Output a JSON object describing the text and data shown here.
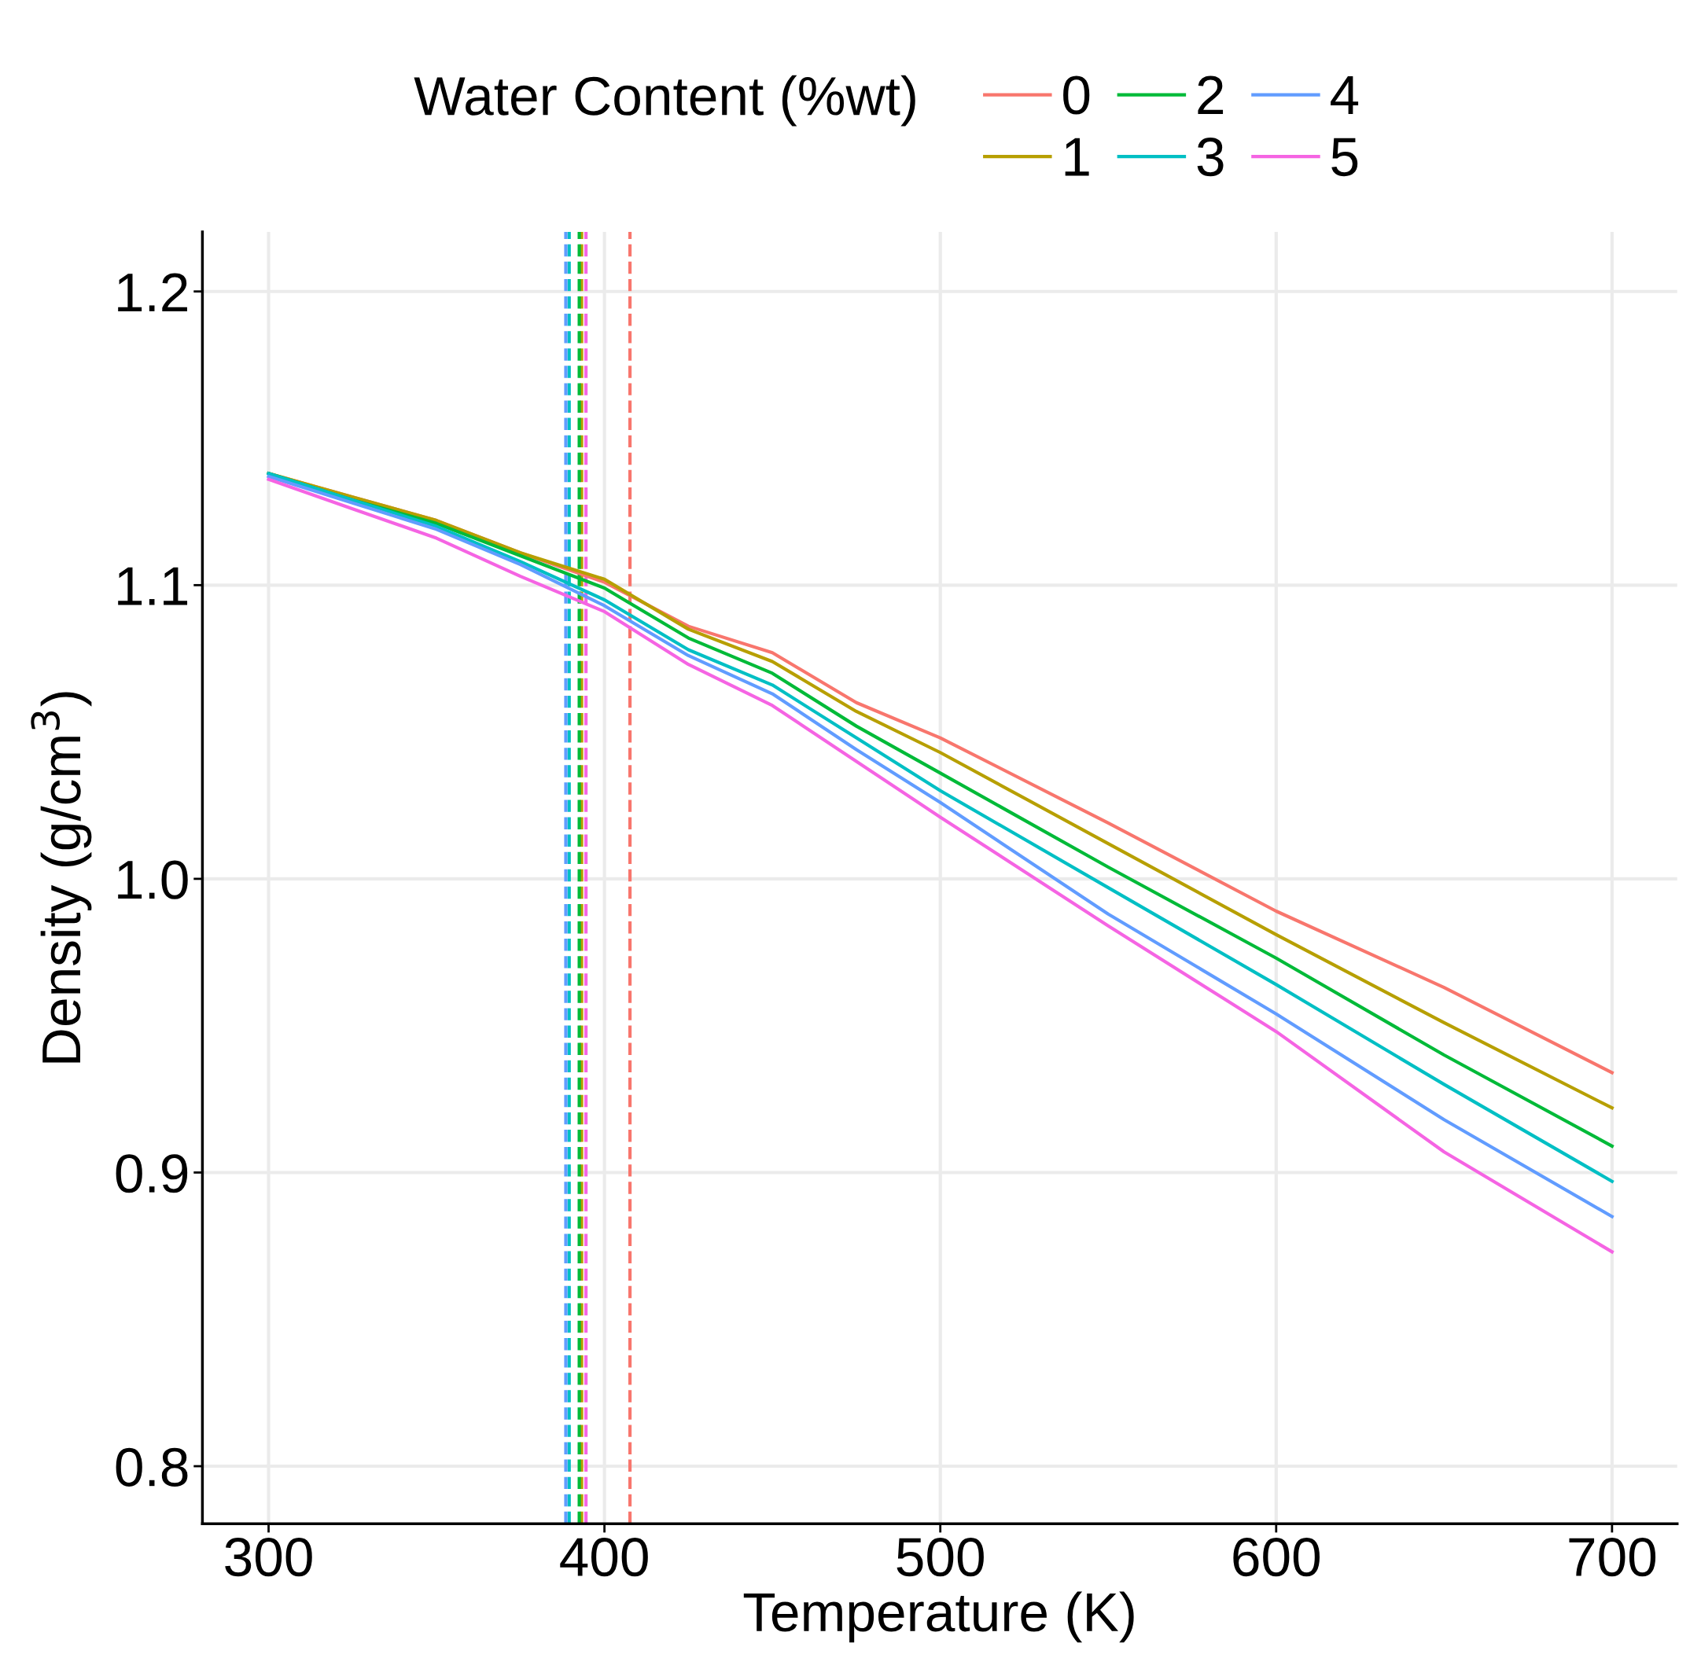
{
  "chart_data": {
    "type": "line",
    "xlabel": "Temperature (K)",
    "ylabel": "Density (g/cm$^{3}$)",
    "legend_title": "Water Content (%wt)",
    "x": [
      300,
      325,
      350,
      375,
      400,
      425,
      450,
      475,
      500,
      550,
      600,
      650,
      700
    ],
    "series": [
      {
        "name": "0",
        "color": "#f8766d",
        "values": [
          1.138,
          1.13,
          1.122,
          1.111,
          1.101,
          1.086,
          1.077,
          1.06,
          1.048,
          1.019,
          0.989,
          0.963,
          0.934
        ]
      },
      {
        "name": "1",
        "color": "#b79f00",
        "values": [
          1.138,
          1.13,
          1.122,
          1.111,
          1.102,
          1.085,
          1.074,
          1.057,
          1.043,
          1.012,
          0.981,
          0.951,
          0.922
        ]
      },
      {
        "name": "2",
        "color": "#00ba38",
        "values": [
          1.138,
          1.129,
          1.121,
          1.11,
          1.099,
          1.082,
          1.07,
          1.052,
          1.036,
          1.004,
          0.973,
          0.94,
          0.909
        ]
      },
      {
        "name": "3",
        "color": "#00bfc4",
        "values": [
          1.138,
          1.129,
          1.12,
          1.108,
          1.095,
          1.078,
          1.066,
          1.048,
          1.03,
          0.997,
          0.964,
          0.93,
          0.897
        ]
      },
      {
        "name": "4",
        "color": "#619cff",
        "values": [
          1.137,
          1.128,
          1.119,
          1.107,
          1.093,
          1.076,
          1.063,
          1.044,
          1.026,
          0.988,
          0.954,
          0.918,
          0.885
        ]
      },
      {
        "name": "5",
        "color": "#f564e3",
        "values": [
          1.136,
          1.126,
          1.116,
          1.103,
          1.091,
          1.073,
          1.059,
          1.04,
          1.021,
          0.984,
          0.948,
          0.907,
          0.873
        ]
      }
    ],
    "ref_lines": [
      {
        "axis": "x",
        "value": 407.6,
        "color": "#f8766d",
        "line_style": "dashed"
      },
      {
        "axis": "x",
        "value": 393.2,
        "color": "#b79f00",
        "line_style": "dashed"
      },
      {
        "axis": "x",
        "value": 392.5,
        "color": "#00ba38",
        "line_style": "dashed"
      },
      {
        "axis": "x",
        "value": 389.5,
        "color": "#00bfc4",
        "line_style": "dashed"
      },
      {
        "axis": "x",
        "value": 388.5,
        "color": "#619cff",
        "line_style": "dashed"
      },
      {
        "axis": "x",
        "value": 394.5,
        "color": "#f564e3",
        "line_style": "dashed"
      }
    ],
    "xlim": [
      280.3,
      719.4
    ],
    "xticks": [
      300,
      400,
      500,
      600,
      700
    ],
    "ylim": [
      0.7804,
      1.2203
    ],
    "yticks": [
      0.8,
      0.9,
      {
        "value": 1.0,
        "label": "1.0"
      },
      1.1,
      1.2
    ],
    "grid": true,
    "legend": "top",
    "marker": "none",
    "line_style": "solid"
  }
}
